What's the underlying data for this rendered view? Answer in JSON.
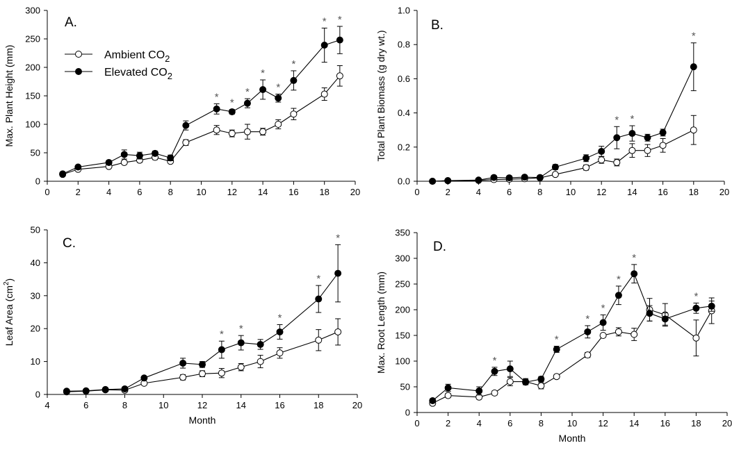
{
  "chart_data": [
    {
      "type": "line",
      "panel_label": "A.",
      "xlabel": "",
      "ylabel": "Max. Plant Height (mm)",
      "xlim": [
        0,
        20
      ],
      "ylim": [
        0,
        300
      ],
      "xticks": [
        0,
        2,
        4,
        6,
        8,
        10,
        12,
        14,
        16,
        18,
        20
      ],
      "yticks": [
        0,
        50,
        100,
        150,
        200,
        250,
        300
      ],
      "legend": {
        "placement": "top-left",
        "entries": [
          {
            "series": "ambient",
            "text": "Ambient CO",
            "sub": "2"
          },
          {
            "series": "elevated",
            "text": "Elevated CO",
            "sub": "2"
          }
        ]
      },
      "series": [
        {
          "key": "ambient",
          "name": "Ambient CO2",
          "marker": "open-circle",
          "x": [
            1,
            2,
            4,
            5,
            6,
            7,
            8,
            9,
            11,
            12,
            13,
            14,
            15,
            16,
            18,
            19
          ],
          "y": [
            12,
            21,
            26,
            33,
            37,
            42,
            35,
            68,
            90,
            84,
            87,
            87,
            100,
            118,
            153,
            185
          ],
          "err": [
            2,
            2,
            3,
            3,
            4,
            4,
            3,
            5,
            8,
            6,
            13,
            6,
            8,
            10,
            11,
            18
          ]
        },
        {
          "key": "elevated",
          "name": "Elevated CO2",
          "marker": "filled-circle",
          "x": [
            1,
            2,
            4,
            5,
            6,
            7,
            8,
            9,
            11,
            12,
            13,
            14,
            15,
            16,
            18,
            19
          ],
          "y": [
            13,
            25,
            33,
            47,
            45,
            49,
            41,
            98,
            127,
            122,
            137,
            161,
            146,
            177,
            239,
            248
          ],
          "err": [
            2,
            2,
            3,
            8,
            6,
            4,
            5,
            8,
            9,
            4,
            8,
            17,
            7,
            17,
            30,
            24
          ]
        }
      ],
      "significant_x": [
        11,
        12,
        13,
        14,
        15,
        16,
        18,
        19
      ],
      "annotation": "*"
    },
    {
      "type": "line",
      "panel_label": "B.",
      "xlabel": "",
      "ylabel": "Total Plant Biomass (g dry wt.)",
      "xlim": [
        0,
        20
      ],
      "ylim": [
        0,
        1.0
      ],
      "xticks": [
        0,
        2,
        4,
        6,
        8,
        10,
        12,
        14,
        16,
        18,
        20
      ],
      "yticks": [
        0.0,
        0.2,
        0.4,
        0.6,
        0.8,
        1.0
      ],
      "ytick_labels": [
        "0.0",
        "0.2",
        "0.4",
        "0.6",
        "0.8",
        "1.0"
      ],
      "series": [
        {
          "key": "ambient",
          "name": "Ambient CO2",
          "marker": "open-circle",
          "x": [
            1,
            2,
            4,
            5,
            6,
            7,
            8,
            9,
            11,
            12,
            13,
            14,
            15,
            16,
            18
          ],
          "y": [
            0.0,
            0.003,
            0.005,
            0.01,
            0.012,
            0.015,
            0.02,
            0.04,
            0.08,
            0.125,
            0.11,
            0.18,
            0.18,
            0.21,
            0.3
          ],
          "err": [
            0.002,
            0.002,
            0.003,
            0.005,
            0.005,
            0.006,
            0.006,
            0.01,
            0.015,
            0.02,
            0.02,
            0.04,
            0.035,
            0.04,
            0.085
          ]
        },
        {
          "key": "elevated",
          "name": "Elevated CO2",
          "marker": "filled-circle",
          "x": [
            1,
            2,
            4,
            5,
            6,
            7,
            8,
            9,
            11,
            12,
            13,
            14,
            15,
            16,
            18
          ],
          "y": [
            0.0,
            0.004,
            0.007,
            0.022,
            0.02,
            0.024,
            0.022,
            0.083,
            0.135,
            0.175,
            0.255,
            0.28,
            0.255,
            0.285,
            0.67
          ],
          "err": [
            0.002,
            0.002,
            0.003,
            0.008,
            0.006,
            0.008,
            0.006,
            0.015,
            0.02,
            0.03,
            0.065,
            0.045,
            0.02,
            0.02,
            0.14
          ]
        }
      ],
      "significant_x": [
        13,
        14,
        18
      ],
      "annotation": "*"
    },
    {
      "type": "line",
      "panel_label": "C.",
      "xlabel": "Month",
      "ylabel": "Leaf Area (cm",
      "ylabel_sup": "2",
      "ylabel_tail": ")",
      "xlim": [
        4,
        20
      ],
      "ylim": [
        0,
        50
      ],
      "xticks": [
        4,
        6,
        8,
        10,
        12,
        14,
        16,
        18,
        20
      ],
      "yticks": [
        0,
        10,
        20,
        30,
        40,
        50
      ],
      "series": [
        {
          "key": "ambient",
          "name": "Ambient CO2",
          "marker": "open-circle",
          "x": [
            5,
            6,
            7,
            8,
            9,
            11,
            12,
            13,
            14,
            15,
            16,
            18,
            19
          ],
          "y": [
            0.8,
            1.0,
            1.4,
            1.3,
            3.4,
            5.2,
            6.3,
            6.5,
            8.3,
            10.0,
            12.6,
            16.5,
            19.0
          ],
          "err": [
            0.2,
            0.2,
            0.2,
            0.2,
            0.5,
            0.8,
            0.9,
            1.4,
            1.1,
            1.9,
            1.6,
            3.2,
            4.0
          ]
        },
        {
          "key": "elevated",
          "name": "Elevated CO2",
          "marker": "filled-circle",
          "x": [
            5,
            6,
            7,
            8,
            9,
            11,
            12,
            13,
            14,
            15,
            16,
            18,
            19
          ],
          "y": [
            1.0,
            1.1,
            1.5,
            1.7,
            5.0,
            9.5,
            9.1,
            13.6,
            15.7,
            15.2,
            19.0,
            29.0,
            36.8
          ],
          "err": [
            0.2,
            0.2,
            0.2,
            0.3,
            0.5,
            1.5,
            0.9,
            2.6,
            2.2,
            1.5,
            2.2,
            4.1,
            8.7
          ]
        }
      ],
      "significant_x": [
        13,
        14,
        16,
        18,
        19
      ],
      "annotation": "*"
    },
    {
      "type": "line",
      "panel_label": "D.",
      "xlabel": "Month",
      "ylabel": "Max. Root Length (mm)",
      "xlim": [
        0,
        20
      ],
      "ylim": [
        0,
        350
      ],
      "xticks": [
        0,
        2,
        4,
        6,
        8,
        10,
        12,
        14,
        16,
        18,
        20
      ],
      "yticks": [
        0,
        50,
        100,
        150,
        200,
        250,
        300,
        350
      ],
      "series": [
        {
          "key": "ambient",
          "name": "Ambient CO2",
          "marker": "open-circle",
          "x": [
            1,
            2,
            4,
            5,
            6,
            7,
            8,
            9,
            11,
            12,
            13,
            14,
            15,
            16,
            18,
            19
          ],
          "y": [
            18,
            33,
            30,
            38,
            60,
            60,
            52,
            70,
            112,
            150,
            157,
            152,
            200,
            190,
            145,
            198
          ],
          "err": [
            4,
            4,
            4,
            4,
            8,
            6,
            6,
            4,
            5,
            3,
            8,
            12,
            22,
            22,
            35,
            25
          ]
        },
        {
          "key": "elevated",
          "name": "Elevated CO2",
          "marker": "filled-circle",
          "x": [
            1,
            2,
            4,
            5,
            6,
            7,
            8,
            9,
            11,
            12,
            13,
            14,
            15,
            16,
            18,
            19
          ],
          "y": [
            23,
            48,
            42,
            80,
            85,
            59,
            65,
            123,
            157,
            175,
            228,
            270,
            193,
            182,
            203,
            207
          ],
          "err": [
            4,
            7,
            8,
            8,
            15,
            5,
            5,
            6,
            12,
            15,
            18,
            18,
            15,
            12,
            10,
            10
          ]
        }
      ],
      "significant_x": [
        5,
        9,
        11,
        12,
        13,
        14,
        18
      ],
      "annotation": "*"
    }
  ]
}
